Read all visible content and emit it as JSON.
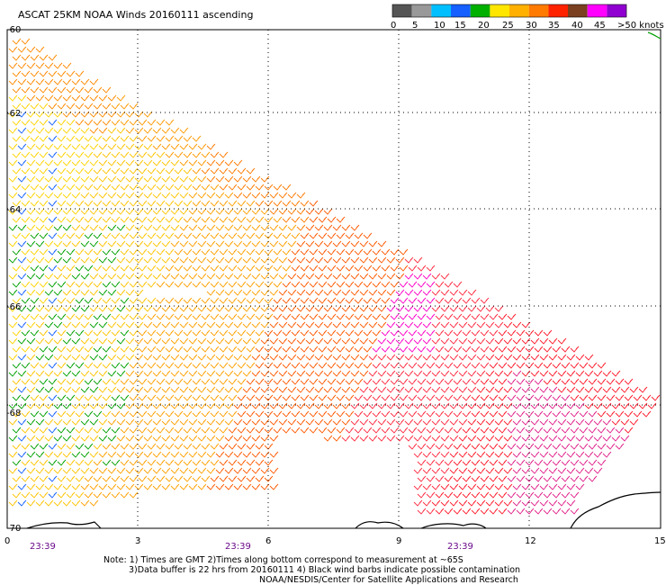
{
  "title": "ASCAT 25KM NOAA Winds 20160111 ascending",
  "legend": {
    "labels": [
      "0",
      "5",
      "10",
      "15",
      "20",
      "25",
      "30",
      "35",
      "40",
      "45",
      ">50 knots"
    ],
    "colors": [
      "#555555",
      "#999999",
      "#00bfff",
      "#1560ff",
      "#00b000",
      "#ffe600",
      "#ffb000",
      "#ff7a00",
      "#ff2200",
      "#7a4020",
      "#ff00ff",
      "#9000d0"
    ]
  },
  "axes": {
    "lat_labels": [
      "-60",
      "-62",
      "-64",
      "-66",
      "-68",
      "-70"
    ],
    "lon_labels": [
      "0",
      "3",
      "6",
      "9",
      "12",
      "15"
    ],
    "time_labels": [
      "23:39",
      "23:39",
      "23:39"
    ]
  },
  "notes": {
    "line1": "Note: 1) Times are GMT 2)Times along bottom correspond to measurement at ~65S",
    "line2": "3)Data buffer is 22 hrs from 20160111 4) Black wind barbs indicate possible contamination",
    "line3": "NOAA/NESDIS/Center for Satellite Applications and Research"
  }
}
